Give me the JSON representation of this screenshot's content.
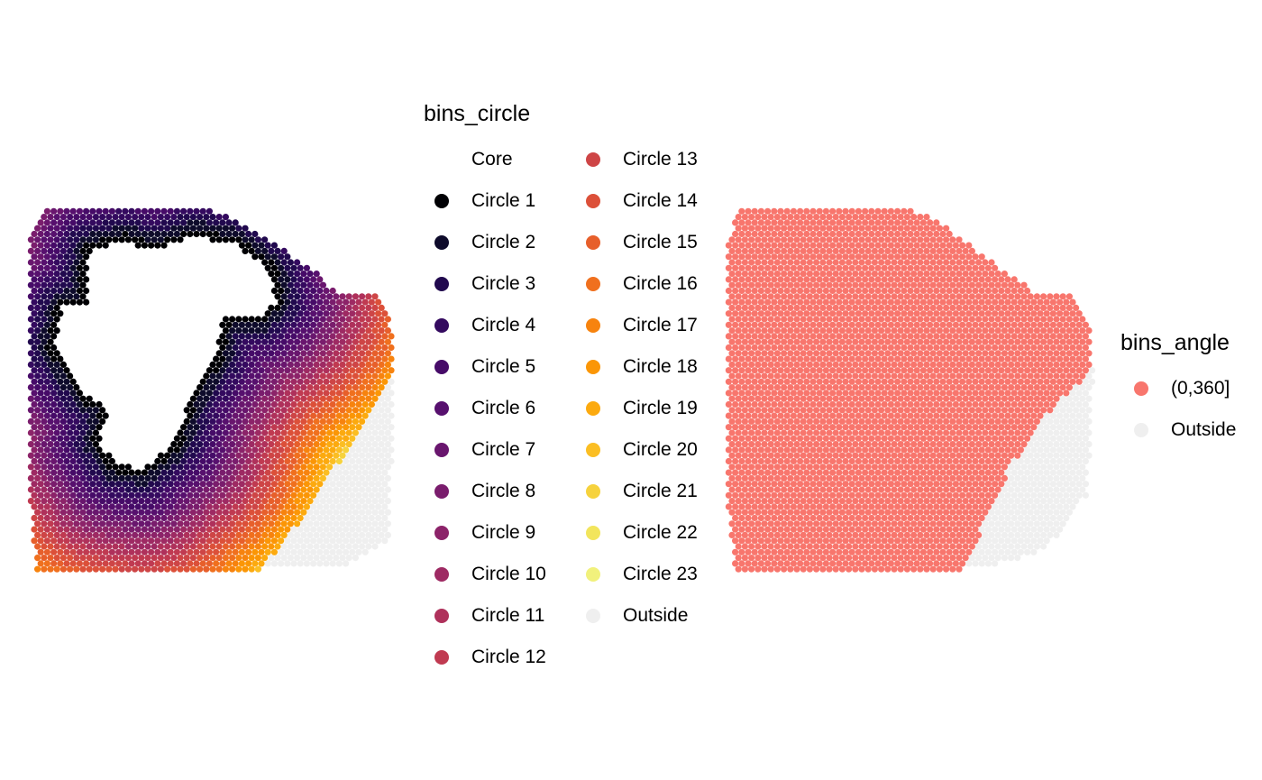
{
  "chart_data": [
    {
      "type": "scatter",
      "title": "",
      "xlabel": "",
      "ylabel": "",
      "grid": false,
      "legend_placement": "right",
      "legend": {
        "title": "bins_circle",
        "entries": [
          {
            "label": "Core",
            "color": "transparent"
          },
          {
            "label": "Circle 1",
            "color": "#000004"
          },
          {
            "label": "Circle 2",
            "color": "#0E0B2B"
          },
          {
            "label": "Circle 3",
            "color": "#21094E"
          },
          {
            "label": "Circle 4",
            "color": "#340A5F"
          },
          {
            "label": "Circle 5",
            "color": "#460B68"
          },
          {
            "label": "Circle 6",
            "color": "#57106E"
          },
          {
            "label": "Circle 7",
            "color": "#69166E"
          },
          {
            "label": "Circle 8",
            "color": "#7A1D6D"
          },
          {
            "label": "Circle 9",
            "color": "#8C2369"
          },
          {
            "label": "Circle 10",
            "color": "#9E2A63"
          },
          {
            "label": "Circle 11",
            "color": "#AF315B"
          },
          {
            "label": "Circle 12",
            "color": "#C03A51"
          },
          {
            "label": "Circle 13",
            "color": "#CE4546"
          },
          {
            "label": "Circle 14",
            "color": "#DC5039"
          },
          {
            "label": "Circle 15",
            "color": "#E75F2B"
          },
          {
            "label": "Circle 16",
            "color": "#F0701E"
          },
          {
            "label": "Circle 17",
            "color": "#F7830E"
          },
          {
            "label": "Circle 18",
            "color": "#FB9606"
          },
          {
            "label": "Circle 19",
            "color": "#FCAA0F"
          },
          {
            "label": "Circle 20",
            "color": "#FBBE23"
          },
          {
            "label": "Circle 21",
            "color": "#F6D23D"
          },
          {
            "label": "Circle 22",
            "color": "#F2E55C"
          },
          {
            "label": "Circle 23",
            "color": "#F1F17C"
          },
          {
            "label": "Outside",
            "color": "#EFEFEF"
          }
        ]
      }
    },
    {
      "type": "scatter",
      "title": "",
      "xlabel": "",
      "ylabel": "",
      "grid": false,
      "legend_placement": "right",
      "legend": {
        "title": "bins_angle",
        "entries": [
          {
            "label": "(0,360]",
            "color": "#F8766D"
          },
          {
            "label": "Outside",
            "color": "#EFEFEF"
          }
        ]
      }
    }
  ]
}
